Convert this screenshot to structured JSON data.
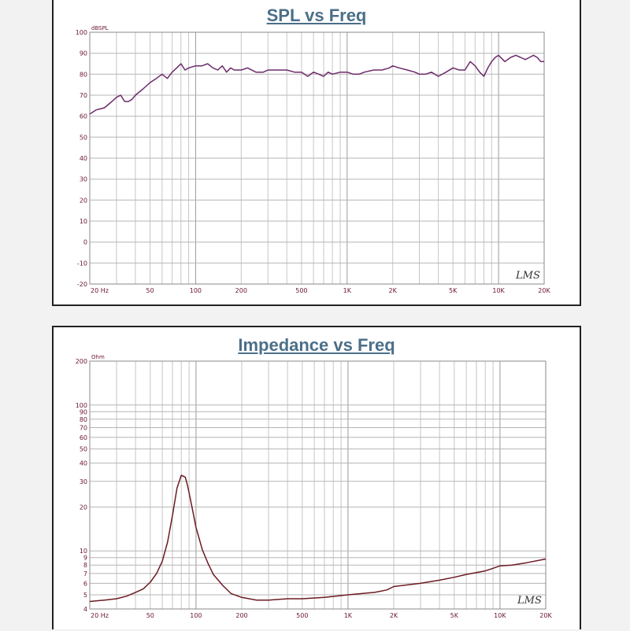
{
  "chart_data": [
    {
      "type": "line",
      "title": "SPL vs Freq",
      "ylabel": "dBSPL",
      "xscale": "log",
      "yscale": "linear",
      "xlim": [
        20,
        20000
      ],
      "ylim": [
        -20,
        100
      ],
      "grid": true,
      "watermark": "LMS",
      "line_color": "#6d2a6a",
      "x_tick_labels": [
        {
          "value": 20,
          "label": "20 Hz"
        },
        {
          "value": 50,
          "label": "50"
        },
        {
          "value": 100,
          "label": "100"
        },
        {
          "value": 200,
          "label": "200"
        },
        {
          "value": 500,
          "label": "500"
        },
        {
          "value": 1000,
          "label": "1K"
        },
        {
          "value": 2000,
          "label": "2K"
        },
        {
          "value": 5000,
          "label": "5K"
        },
        {
          "value": 10000,
          "label": "10K"
        },
        {
          "value": 20000,
          "label": "20K"
        }
      ],
      "y_ticks": [
        100,
        90,
        80,
        70,
        60,
        50,
        40,
        30,
        20,
        10,
        0,
        -10,
        -20
      ],
      "series": [
        {
          "x": [
            20,
            22,
            25,
            28,
            30,
            32,
            34,
            36,
            38,
            40,
            45,
            50,
            55,
            60,
            65,
            70,
            75,
            80,
            85,
            90,
            100,
            110,
            120,
            130,
            140,
            150,
            160,
            170,
            180,
            200,
            220,
            250,
            280,
            300,
            350,
            400,
            450,
            500,
            550,
            600,
            650,
            700,
            750,
            800,
            900,
            1000,
            1100,
            1200,
            1300,
            1500,
            1700,
            1900,
            2000,
            2200,
            2500,
            2800,
            3000,
            3300,
            3600,
            4000,
            4500,
            5000,
            5500,
            6000,
            6500,
            7000,
            7500,
            8000,
            8500,
            9000,
            9500,
            10000,
            11000,
            12000,
            13000,
            14000,
            15000,
            16000,
            17000,
            18000,
            19000,
            20000
          ],
          "y": [
            61,
            63,
            64,
            67,
            69,
            70,
            67,
            67,
            68,
            70,
            73,
            76,
            78,
            80,
            78,
            81,
            83,
            85,
            82,
            83,
            84,
            84,
            85,
            83,
            82,
            84,
            81,
            83,
            82,
            82,
            83,
            81,
            81,
            82,
            82,
            82,
            81,
            81,
            79,
            81,
            80,
            79,
            81,
            80,
            81,
            81,
            80,
            80,
            81,
            82,
            82,
            83,
            84,
            83,
            82,
            81,
            80,
            80,
            81,
            79,
            81,
            83,
            82,
            82,
            86,
            84,
            81,
            79,
            83,
            86,
            88,
            89,
            86,
            88,
            89,
            88,
            87,
            88,
            89,
            88,
            86,
            86
          ]
        }
      ]
    },
    {
      "type": "line",
      "title": "Impedance vs Freq",
      "ylabel": "Ohm",
      "xscale": "log",
      "yscale": "log",
      "xlim": [
        20,
        20000
      ],
      "ylim": [
        4,
        200
      ],
      "grid": true,
      "watermark": "LMS",
      "line_color": "#6b1a22",
      "x_tick_labels": [
        {
          "value": 20,
          "label": "20 Hz"
        },
        {
          "value": 50,
          "label": "50"
        },
        {
          "value": 100,
          "label": "100"
        },
        {
          "value": 200,
          "label": "200"
        },
        {
          "value": 500,
          "label": "500"
        },
        {
          "value": 1000,
          "label": "1K"
        },
        {
          "value": 2000,
          "label": "2K"
        },
        {
          "value": 5000,
          "label": "5K"
        },
        {
          "value": 10000,
          "label": "10K"
        },
        {
          "value": 20000,
          "label": "20K"
        }
      ],
      "y_ticks": [
        200,
        100,
        90,
        80,
        70,
        60,
        50,
        40,
        30,
        20,
        10,
        9,
        8,
        7,
        6,
        5,
        4
      ],
      "series": [
        {
          "x": [
            20,
            25,
            30,
            35,
            40,
            45,
            50,
            55,
            60,
            65,
            70,
            75,
            80,
            85,
            88,
            90,
            95,
            100,
            110,
            120,
            130,
            150,
            170,
            200,
            250,
            300,
            400,
            500,
            700,
            1000,
            1500,
            1800,
            2000,
            3000,
            4000,
            5000,
            6000,
            7000,
            8000,
            9000,
            10000,
            12000,
            15000,
            20000
          ],
          "y": [
            4.5,
            4.6,
            4.7,
            4.9,
            5.2,
            5.5,
            6.1,
            7.0,
            8.5,
            11.5,
            17.5,
            27,
            33,
            32,
            28,
            25,
            19,
            14.5,
            10.2,
            8.2,
            6.9,
            5.8,
            5.1,
            4.8,
            4.6,
            4.6,
            4.7,
            4.7,
            4.8,
            5.0,
            5.2,
            5.4,
            5.7,
            6.0,
            6.3,
            6.6,
            6.9,
            7.1,
            7.3,
            7.6,
            7.9,
            8.0,
            8.3,
            8.8
          ]
        }
      ]
    }
  ]
}
